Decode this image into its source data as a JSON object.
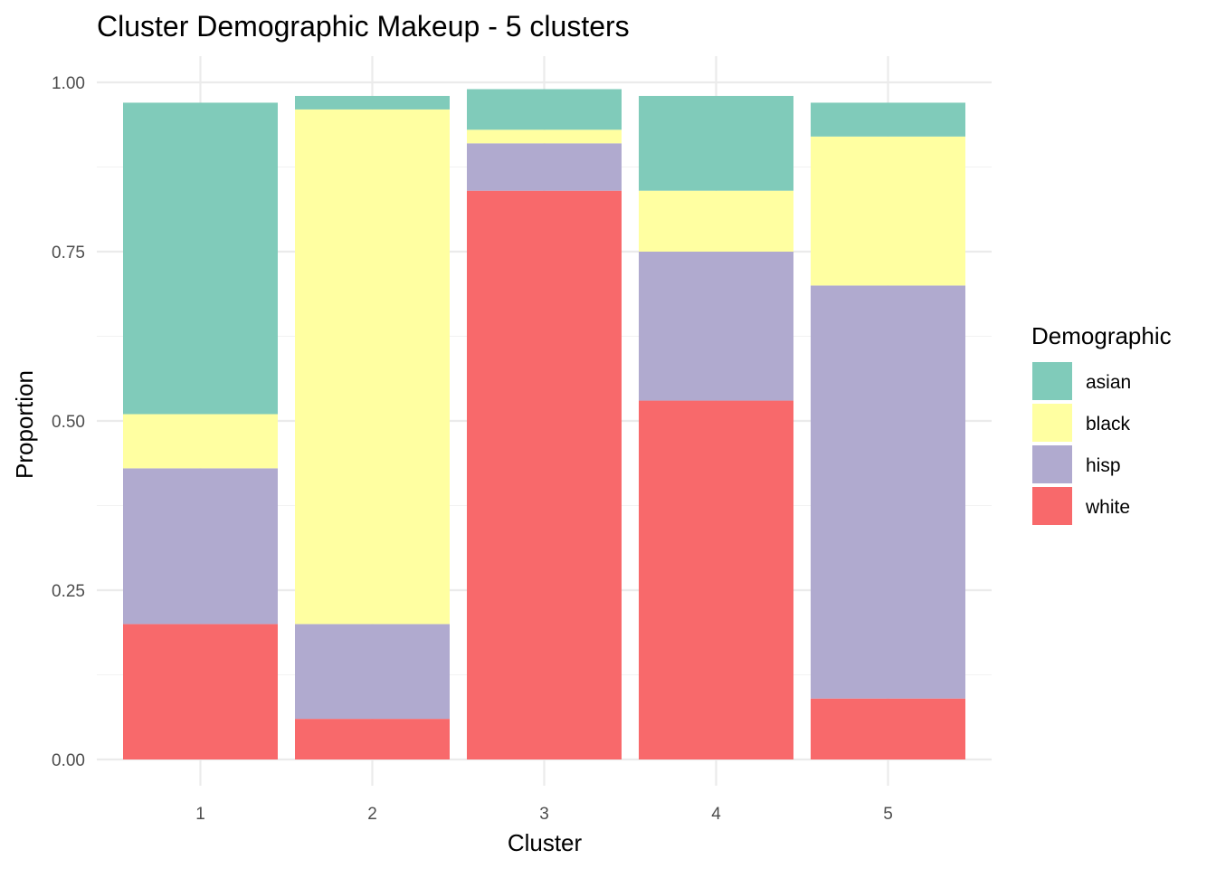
{
  "chart_data": {
    "type": "bar",
    "stacked": true,
    "title": "Cluster Demographic Makeup - 5 clusters",
    "xlabel": "Cluster",
    "ylabel": "Proportion",
    "categories": [
      "1",
      "2",
      "3",
      "4",
      "5"
    ],
    "ylim": [
      0,
      1
    ],
    "yticks": [
      "0.00",
      "0.25",
      "0.50",
      "0.75",
      "1.00"
    ],
    "yticks_values": [
      0,
      0.25,
      0.5,
      0.75,
      1.0
    ],
    "grid": true,
    "legend": {
      "title": "Demographic",
      "position": "right",
      "entries": [
        "asian",
        "black",
        "hisp",
        "white"
      ]
    },
    "series": [
      {
        "name": "white",
        "color": "#F8696B",
        "values": [
          0.2,
          0.06,
          0.84,
          0.53,
          0.09
        ]
      },
      {
        "name": "hisp",
        "color": "#B0AACF",
        "values": [
          0.23,
          0.14,
          0.07,
          0.22,
          0.61
        ]
      },
      {
        "name": "black",
        "color": "#FFFFA1",
        "values": [
          0.08,
          0.76,
          0.02,
          0.09,
          0.22
        ]
      },
      {
        "name": "asian",
        "color": "#80CBBA",
        "values": [
          0.46,
          0.02,
          0.06,
          0.14,
          0.05
        ]
      }
    ]
  }
}
